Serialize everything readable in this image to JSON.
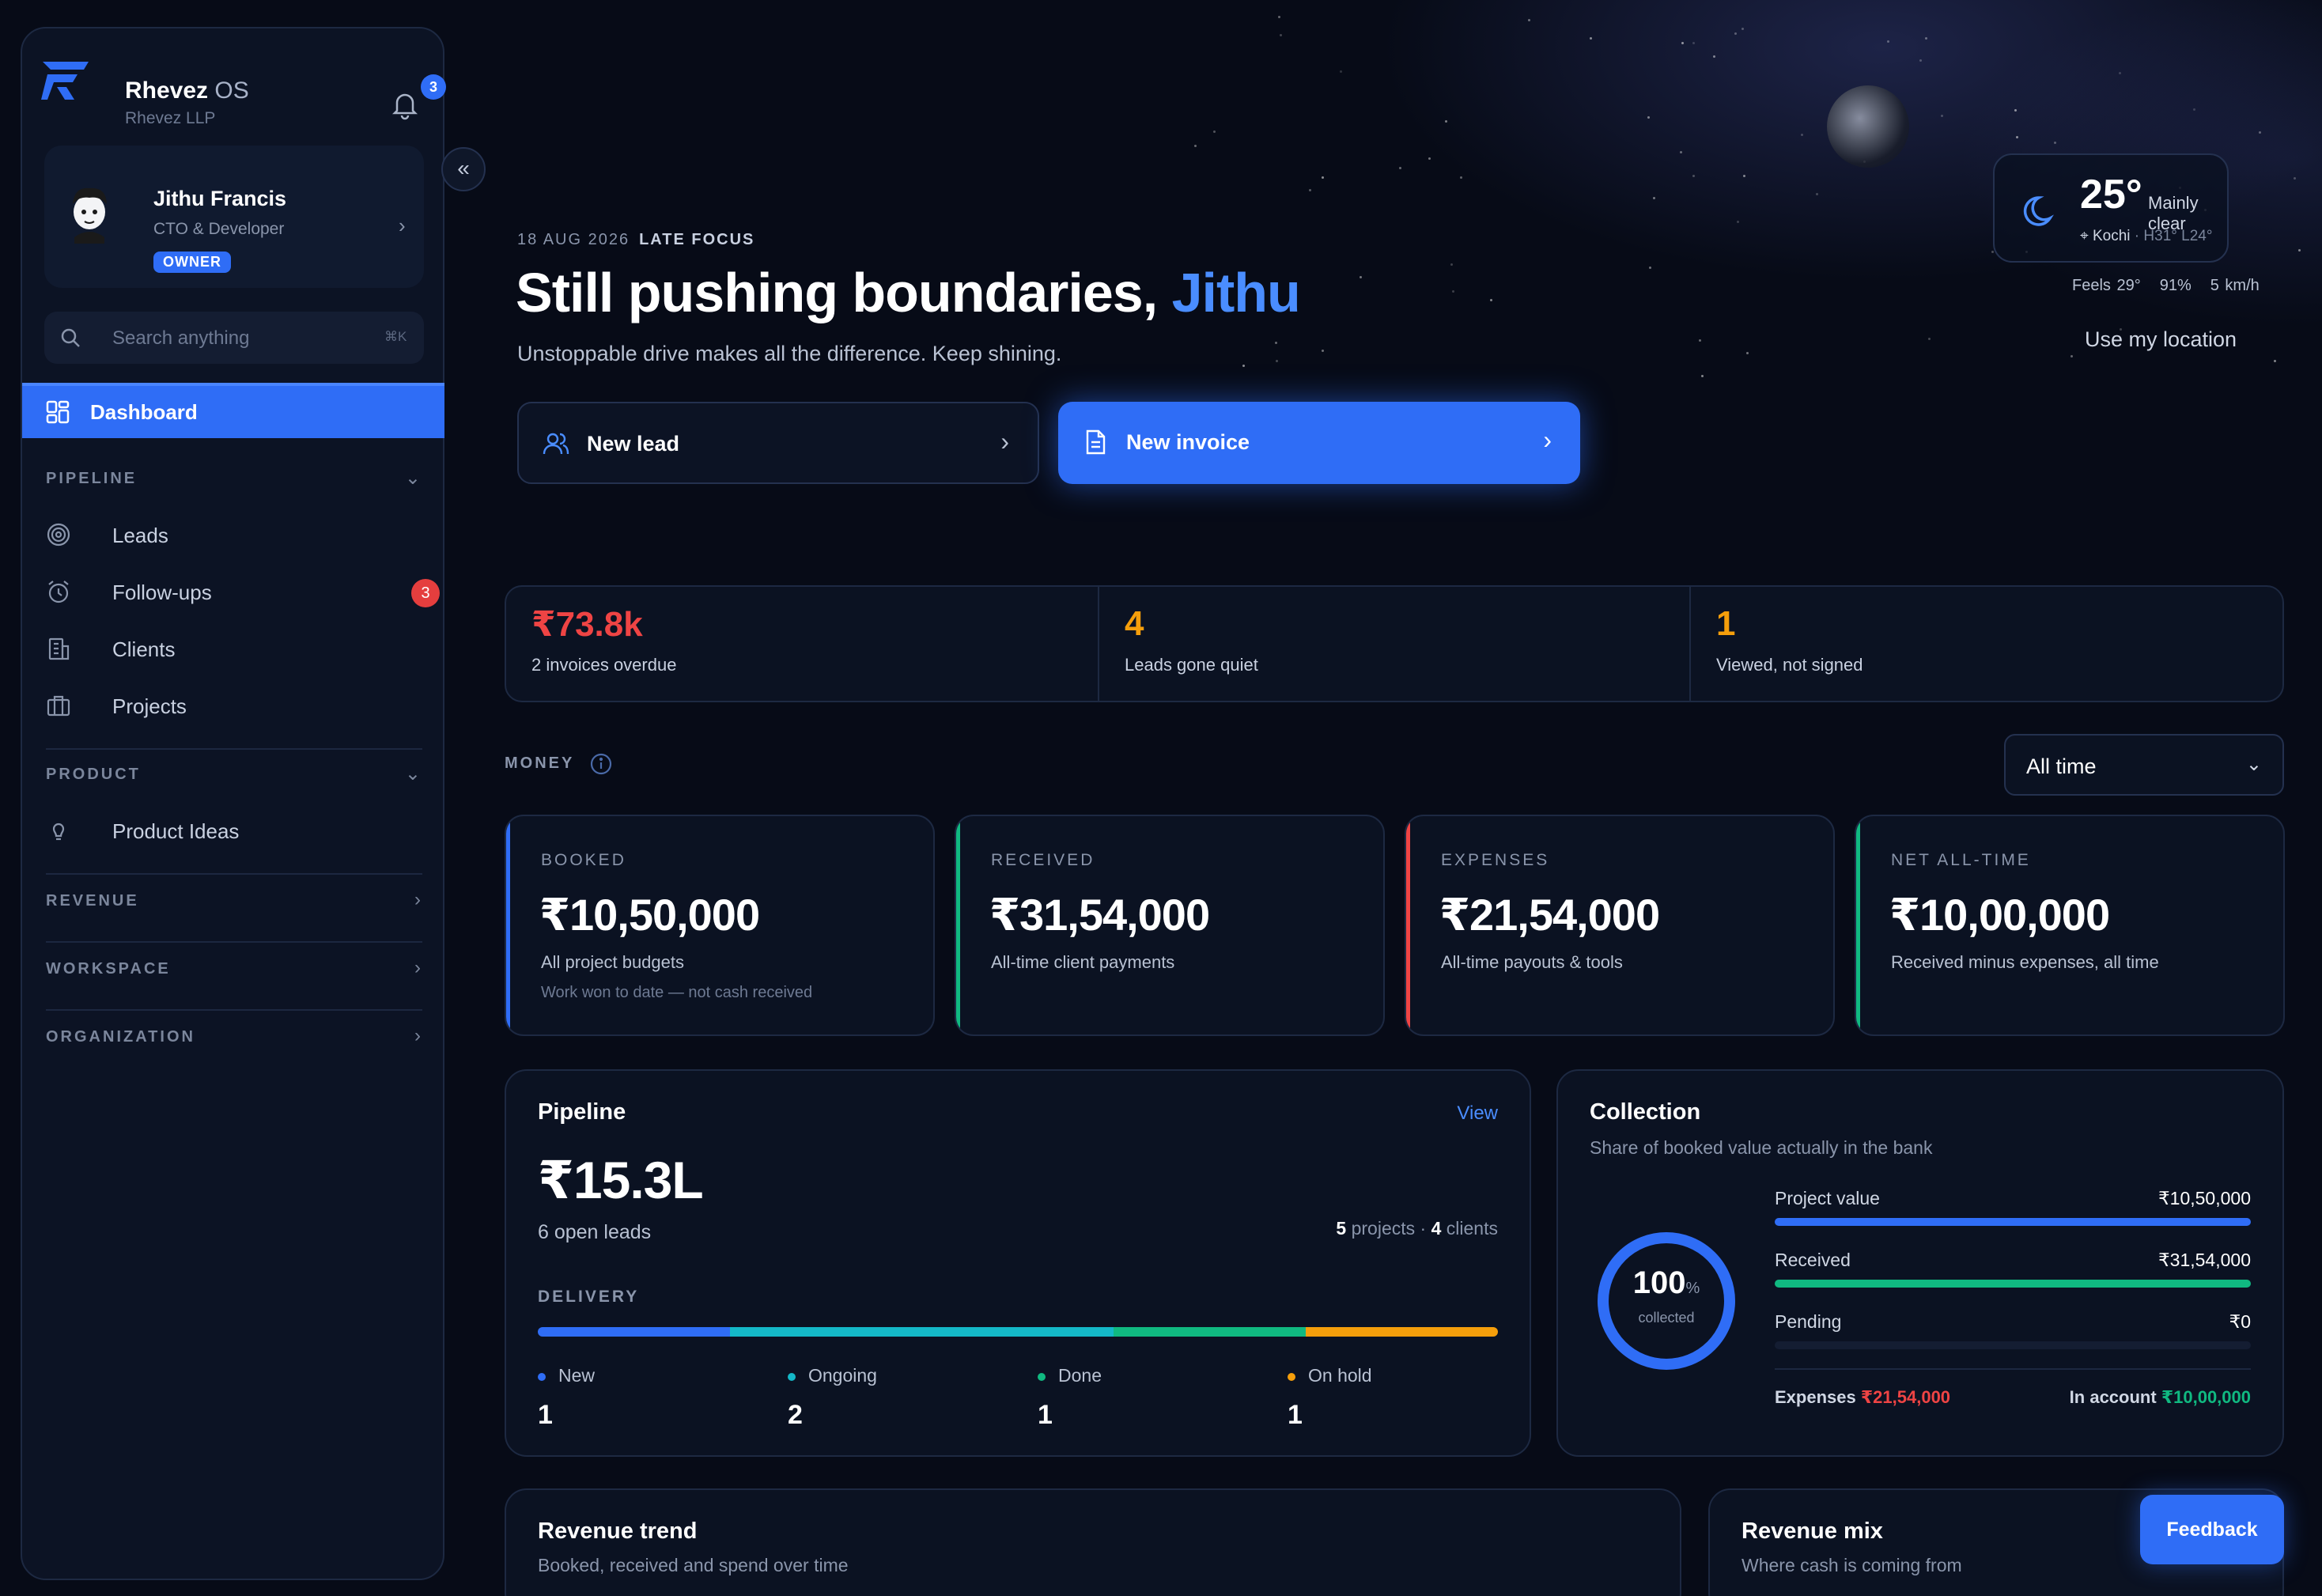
{
  "brand": {
    "name": "Rhevez",
    "suffix": "OS",
    "org": "Rhevez LLP",
    "notifications": "3"
  },
  "profile": {
    "name": "Jithu Francis",
    "role": "CTO & Developer",
    "badge": "OWNER"
  },
  "search": {
    "placeholder": "Search anything",
    "shortcut": "⌘K"
  },
  "nav": {
    "active": "Dashboard",
    "sections": {
      "pipeline": "PIPELINE",
      "product": "PRODUCT",
      "revenue": "REVENUE",
      "workspace": "WORKSPACE",
      "organization": "ORGANIZATION"
    },
    "items": {
      "leads": "Leads",
      "followups": "Follow-ups",
      "followups_badge": "3",
      "clients": "Clients",
      "projects": "Projects",
      "product_ideas": "Product Ideas"
    }
  },
  "greeting": {
    "date": "18 AUG 2026",
    "mode": "LATE FOCUS",
    "title": "Still pushing boundaries,",
    "name": "Jithu",
    "subtitle": "Unstoppable drive makes all the difference. Keep shining."
  },
  "actions": {
    "new_lead": "New lead",
    "new_invoice": "New invoice"
  },
  "weather": {
    "temp": "25°",
    "condition": "Mainly clear",
    "location": "Kochi",
    "hilo": "· H31° L24°",
    "feels": "Feels 29°",
    "humidity": "91%",
    "wind": "5 km/h",
    "use_location": "Use my location"
  },
  "alerts": [
    {
      "value": "₹73.8k",
      "label": "2 invoices overdue",
      "color": "#ef4444"
    },
    {
      "value": "4",
      "label": "Leads gone quiet",
      "color": "#f59e0b"
    },
    {
      "value": "1",
      "label": "Viewed, not signed",
      "color": "#f59e0b"
    }
  ],
  "money": {
    "heading": "MONEY",
    "period": "All time"
  },
  "money_cards": [
    {
      "title": "BOOKED",
      "value": "₹10,50,000",
      "sub": "All project budgets",
      "note": "Work won to date — not cash received",
      "accent": "#2f6df6"
    },
    {
      "title": "RECEIVED",
      "value": "₹31,54,000",
      "sub": "All-time client payments",
      "note": "",
      "accent": "#10b981"
    },
    {
      "title": "EXPENSES",
      "value": "₹21,54,000",
      "sub": "All-time payouts & tools",
      "note": "",
      "accent": "#ef4444"
    },
    {
      "title": "NET ALL-TIME",
      "value": "₹10,00,000",
      "sub": "Received minus expenses, all time",
      "note": "",
      "accent": "#10b981"
    }
  ],
  "pipeline": {
    "title": "Pipeline",
    "view": "View",
    "total": "₹15.3L",
    "open_leads": "6 open leads",
    "projects_count": "5",
    "projects_label": "projects",
    "clients_count": "4",
    "clients_label": "clients",
    "delivery_label": "DELIVERY",
    "stats": [
      {
        "label": "New",
        "value": "1",
        "color": "#2f6df6"
      },
      {
        "label": "Ongoing",
        "value": "2",
        "color": "#14b8c8"
      },
      {
        "label": "Done",
        "value": "1",
        "color": "#10b981"
      },
      {
        "label": "On hold",
        "value": "1",
        "color": "#f59e0b"
      }
    ]
  },
  "collection": {
    "title": "Collection",
    "subtitle": "Share of booked value actually in the bank",
    "percent": "100",
    "percent_unit": "%",
    "percent_label": "collected",
    "rows": [
      {
        "label": "Project value",
        "value": "₹10,50,000",
        "fill": 1.0,
        "color": "#2f6df6"
      },
      {
        "label": "Received",
        "value": "₹31,54,000",
        "fill": 1.0,
        "color": "#10b981"
      },
      {
        "label": "Pending",
        "value": "₹0",
        "fill": 0.0,
        "color": "#f59e0b"
      }
    ],
    "expenses_label": "Expenses",
    "expenses_value": "₹21,54,000",
    "account_label": "In account",
    "account_value": "₹10,00,000"
  },
  "revenue_trend": {
    "title": "Revenue trend",
    "subtitle": "Booked, received and spend over time"
  },
  "revenue_mix": {
    "title": "Revenue mix",
    "subtitle": "Where cash is coming from"
  },
  "feedback": "Feedback"
}
